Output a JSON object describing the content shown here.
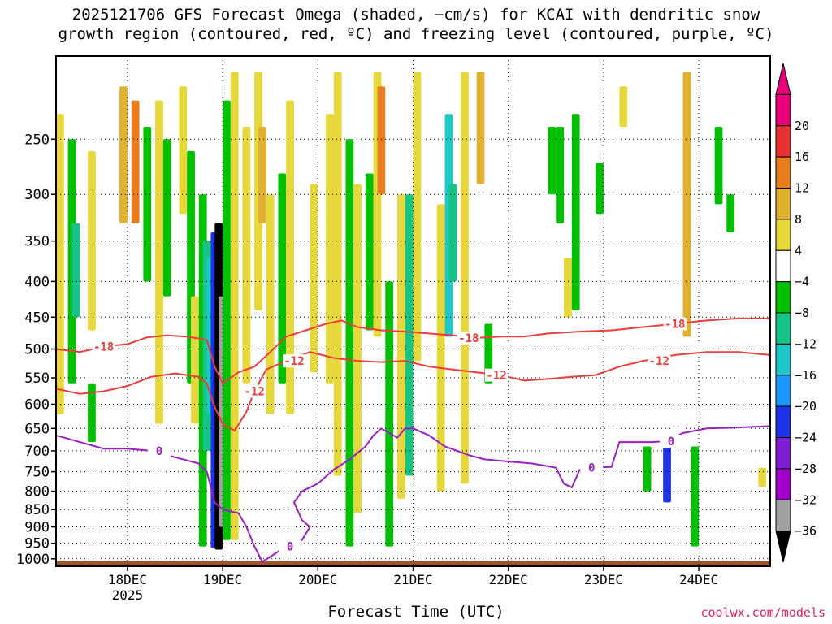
{
  "chart_data": {
    "type": "heatmap",
    "title_lines": [
      "2025121706 GFS Forecast Omega (shaded, −cm/s) for KCAI with dendritic snow",
      "growth region (contoured, red, ºC) and freezing level (contoured, purple, ºC)"
    ],
    "xlabel": "Forecast Time (UTC)",
    "credit": "coolwx.com/models",
    "x_ticks": [
      {
        "t": 0,
        "label": "18DEC",
        "sub": "2025"
      },
      {
        "t": 24,
        "label": "19DEC"
      },
      {
        "t": 48,
        "label": "20DEC"
      },
      {
        "t": 72,
        "label": "21DEC"
      },
      {
        "t": 96,
        "label": "22DEC"
      },
      {
        "t": 120,
        "label": "23DEC"
      },
      {
        "t": 144,
        "label": "24DEC"
      }
    ],
    "xlim": [
      -18,
      162
    ],
    "y_ticks": [
      250,
      300,
      350,
      400,
      450,
      500,
      550,
      600,
      650,
      700,
      750,
      800,
      850,
      900,
      950,
      1000
    ],
    "ylim": [
      1025,
      190
    ],
    "y_scale": "log",
    "colorbar": {
      "labels": [
        "20",
        "16",
        "12",
        "8",
        "4",
        "−4",
        "−8",
        "−12",
        "−16",
        "−20",
        "−24",
        "−28",
        "−32",
        "−36"
      ],
      "colors": [
        "#e8007a",
        "#e83232",
        "#e87d1e",
        "#e0b030",
        "#e6d83a",
        "#ffffff",
        "#00c000",
        "#17c487",
        "#1ec8c8",
        "#1e96ff",
        "#1e32e8",
        "#7d1ed2",
        "#a000c8",
        "#a0a0a0",
        "#000000"
      ]
    },
    "omega_patches": [
      {
        "t0": -18,
        "t1": -16,
        "p0": 230,
        "p1": 620,
        "c": 4
      },
      {
        "t0": -15,
        "t1": -13,
        "p0": 250,
        "p1": 560,
        "c": 6
      },
      {
        "t0": -14,
        "t1": -12,
        "p0": 330,
        "p1": 450,
        "c": 7
      },
      {
        "t0": -10,
        "t1": -8,
        "p0": 260,
        "p1": 470,
        "c": 4
      },
      {
        "t0": -10,
        "t1": -8,
        "p0": 560,
        "p1": 680,
        "c": 6
      },
      {
        "t0": -2,
        "t1": 0,
        "p0": 210,
        "p1": 330,
        "c": 3
      },
      {
        "t0": 1,
        "t1": 3,
        "p0": 220,
        "p1": 330,
        "c": 2
      },
      {
        "t0": 4,
        "t1": 6,
        "p0": 240,
        "p1": 400,
        "c": 6
      },
      {
        "t0": 7,
        "t1": 9,
        "p0": 220,
        "p1": 640,
        "c": 4
      },
      {
        "t0": 9,
        "t1": 11,
        "p0": 250,
        "p1": 420,
        "c": 6
      },
      {
        "t0": 13,
        "t1": 15,
        "p0": 210,
        "p1": 320,
        "c": 4
      },
      {
        "t0": 15,
        "t1": 17,
        "p0": 260,
        "p1": 560,
        "c": 6
      },
      {
        "t0": 16,
        "t1": 18,
        "p0": 420,
        "p1": 640,
        "c": 4
      },
      {
        "t0": 18,
        "t1": 20,
        "p0": 300,
        "p1": 960,
        "c": 6
      },
      {
        "t0": 19,
        "t1": 21,
        "p0": 350,
        "p1": 700,
        "c": 7
      },
      {
        "t0": 20,
        "t1": 22,
        "p0": 370,
        "p1": 620,
        "c": 8
      },
      {
        "t0": 21,
        "t1": 23,
        "p0": 340,
        "p1": 965,
        "c": 10
      },
      {
        "t0": 22,
        "t1": 24,
        "p0": 330,
        "p1": 970,
        "c": 14
      },
      {
        "t0": 23,
        "t1": 25,
        "p0": 420,
        "p1": 900,
        "c": 13
      },
      {
        "t0": 24,
        "t1": 26,
        "p0": 220,
        "p1": 940,
        "c": 6
      },
      {
        "t0": 26,
        "t1": 28,
        "p0": 200,
        "p1": 940,
        "c": 4
      },
      {
        "t0": 29,
        "t1": 31,
        "p0": 240,
        "p1": 560,
        "c": 4
      },
      {
        "t0": 32,
        "t1": 34,
        "p0": 200,
        "p1": 440,
        "c": 4
      },
      {
        "t0": 33,
        "t1": 35,
        "p0": 240,
        "p1": 330,
        "c": 3
      },
      {
        "t0": 35,
        "t1": 37,
        "p0": 300,
        "p1": 620,
        "c": 4
      },
      {
        "t0": 38,
        "t1": 40,
        "p0": 280,
        "p1": 560,
        "c": 6
      },
      {
        "t0": 40,
        "t1": 42,
        "p0": 220,
        "p1": 620,
        "c": 4
      },
      {
        "t0": 46,
        "t1": 48,
        "p0": 290,
        "p1": 540,
        "c": 4
      },
      {
        "t0": 50,
        "t1": 52,
        "p0": 230,
        "p1": 560,
        "c": 4
      },
      {
        "t0": 52,
        "t1": 54,
        "p0": 200,
        "p1": 760,
        "c": 4
      },
      {
        "t0": 55,
        "t1": 57,
        "p0": 250,
        "p1": 960,
        "c": 6
      },
      {
        "t0": 57,
        "t1": 59,
        "p0": 290,
        "p1": 860,
        "c": 4
      },
      {
        "t0": 60,
        "t1": 62,
        "p0": 280,
        "p1": 470,
        "c": 6
      },
      {
        "t0": 62,
        "t1": 64,
        "p0": 200,
        "p1": 480,
        "c": 4
      },
      {
        "t0": 63,
        "t1": 65,
        "p0": 210,
        "p1": 300,
        "c": 2
      },
      {
        "t0": 65,
        "t1": 67,
        "p0": 400,
        "p1": 960,
        "c": 6
      },
      {
        "t0": 68,
        "t1": 70,
        "p0": 300,
        "p1": 820,
        "c": 4
      },
      {
        "t0": 70,
        "t1": 72,
        "p0": 300,
        "p1": 760,
        "c": 7
      },
      {
        "t0": 72,
        "t1": 74,
        "p0": 200,
        "p1": 520,
        "c": 4
      },
      {
        "t0": 78,
        "t1": 80,
        "p0": 310,
        "p1": 800,
        "c": 4
      },
      {
        "t0": 80,
        "t1": 82,
        "p0": 230,
        "p1": 480,
        "c": 8
      },
      {
        "t0": 81,
        "t1": 83,
        "p0": 290,
        "p1": 400,
        "c": 7
      },
      {
        "t0": 84,
        "t1": 86,
        "p0": 200,
        "p1": 780,
        "c": 4
      },
      {
        "t0": 88,
        "t1": 90,
        "p0": 200,
        "p1": 290,
        "c": 3
      },
      {
        "t0": 90,
        "t1": 92,
        "p0": 460,
        "p1": 560,
        "c": 6
      },
      {
        "t0": 106,
        "t1": 108,
        "p0": 240,
        "p1": 300,
        "c": 6
      },
      {
        "t0": 108,
        "t1": 110,
        "p0": 240,
        "p1": 330,
        "c": 6
      },
      {
        "t0": 110,
        "t1": 112,
        "p0": 370,
        "p1": 450,
        "c": 4
      },
      {
        "t0": 112,
        "t1": 114,
        "p0": 230,
        "p1": 440,
        "c": 6
      },
      {
        "t0": 118,
        "t1": 120,
        "p0": 270,
        "p1": 320,
        "c": 6
      },
      {
        "t0": 124,
        "t1": 126,
        "p0": 210,
        "p1": 240,
        "c": 4
      },
      {
        "t0": 130,
        "t1": 132,
        "p0": 690,
        "p1": 800,
        "c": 6
      },
      {
        "t0": 135,
        "t1": 137,
        "p0": 690,
        "p1": 830,
        "c": 10
      },
      {
        "t0": 140,
        "t1": 142,
        "p0": 200,
        "p1": 480,
        "c": 3
      },
      {
        "t0": 142,
        "t1": 144,
        "p0": 690,
        "p1": 960,
        "c": 6
      },
      {
        "t0": 148,
        "t1": 150,
        "p0": 240,
        "p1": 310,
        "c": 6
      },
      {
        "t0": 151,
        "t1": 153,
        "p0": 300,
        "p1": 340,
        "c": 6
      },
      {
        "t0": 159,
        "t1": 161,
        "p0": 740,
        "p1": 790,
        "c": 4
      }
    ],
    "series": [
      {
        "name": "-18",
        "color": "#ee3b3b",
        "labels": [
          {
            "t": -6,
            "text": "-18"
          },
          {
            "t": 86,
            "text": "-18"
          },
          {
            "t": 138,
            "text": "-18"
          }
        ],
        "points": [
          [
            -18,
            500
          ],
          [
            -12,
            505
          ],
          [
            -6,
            496
          ],
          [
            0,
            492
          ],
          [
            5,
            481
          ],
          [
            10,
            478
          ],
          [
            15,
            480
          ],
          [
            20,
            485
          ],
          [
            22,
            530
          ],
          [
            24,
            560
          ],
          [
            28,
            540
          ],
          [
            32,
            530
          ],
          [
            36,
            505
          ],
          [
            40,
            480
          ],
          [
            45,
            470
          ],
          [
            50,
            460
          ],
          [
            54,
            455
          ],
          [
            58,
            465
          ],
          [
            64,
            470
          ],
          [
            70,
            472
          ],
          [
            76,
            475
          ],
          [
            82,
            478
          ],
          [
            88,
            482
          ],
          [
            94,
            480
          ],
          [
            100,
            480
          ],
          [
            106,
            475
          ],
          [
            114,
            472
          ],
          [
            122,
            470
          ],
          [
            130,
            465
          ],
          [
            138,
            460
          ],
          [
            146,
            455
          ],
          [
            154,
            452
          ],
          [
            162,
            452
          ]
        ]
      },
      {
        "name": "-12",
        "color": "#ee3b3b",
        "labels": [
          {
            "t": 32,
            "text": "-12"
          },
          {
            "t": 42,
            "text": "-12"
          },
          {
            "t": 93,
            "text": "-12"
          },
          {
            "t": 134,
            "text": "-12"
          }
        ],
        "points": [
          [
            -18,
            570
          ],
          [
            -12,
            580
          ],
          [
            -6,
            575
          ],
          [
            0,
            565
          ],
          [
            6,
            548
          ],
          [
            12,
            542
          ],
          [
            18,
            548
          ],
          [
            20,
            560
          ],
          [
            22,
            605
          ],
          [
            24,
            640
          ],
          [
            27,
            655
          ],
          [
            30,
            615
          ],
          [
            32,
            575
          ],
          [
            35,
            535
          ],
          [
            40,
            520
          ],
          [
            46,
            505
          ],
          [
            52,
            515
          ],
          [
            58,
            520
          ],
          [
            64,
            522
          ],
          [
            70,
            520
          ],
          [
            76,
            530
          ],
          [
            82,
            535
          ],
          [
            88,
            540
          ],
          [
            94,
            545
          ],
          [
            100,
            555
          ],
          [
            106,
            552
          ],
          [
            112,
            548
          ],
          [
            118,
            545
          ],
          [
            124,
            530
          ],
          [
            130,
            520
          ],
          [
            138,
            510
          ],
          [
            146,
            505
          ],
          [
            154,
            505
          ],
          [
            162,
            510
          ]
        ]
      },
      {
        "name": "0",
        "color": "#9a1fc4",
        "labels": [
          {
            "t": 8,
            "text": "0"
          },
          {
            "t": 41,
            "text": "0"
          },
          {
            "t": 117,
            "text": "0"
          },
          {
            "t": 137,
            "text": "0"
          }
        ],
        "points": [
          [
            -18,
            665
          ],
          [
            -12,
            680
          ],
          [
            -6,
            695
          ],
          [
            0,
            695
          ],
          [
            6,
            700
          ],
          [
            12,
            715
          ],
          [
            18,
            730
          ],
          [
            20,
            750
          ],
          [
            22,
            830
          ],
          [
            24,
            850
          ],
          [
            28,
            860
          ],
          [
            30,
            900
          ],
          [
            32,
            960
          ],
          [
            34,
            1010
          ],
          [
            40,
            960
          ],
          [
            44,
            940
          ],
          [
            46,
            900
          ],
          [
            44,
            880
          ],
          [
            42,
            830
          ],
          [
            44,
            800
          ],
          [
            48,
            780
          ],
          [
            52,
            745
          ],
          [
            56,
            720
          ],
          [
            60,
            690
          ],
          [
            62,
            665
          ],
          [
            64,
            650
          ],
          [
            66,
            660
          ],
          [
            68,
            670
          ],
          [
            70,
            650
          ],
          [
            72,
            650
          ],
          [
            76,
            665
          ],
          [
            80,
            690
          ],
          [
            86,
            710
          ],
          [
            90,
            720
          ],
          [
            96,
            725
          ],
          [
            102,
            730
          ],
          [
            108,
            740
          ],
          [
            110,
            780
          ],
          [
            112,
            790
          ],
          [
            114,
            745
          ],
          [
            118,
            740
          ],
          [
            122,
            738
          ],
          [
            124,
            680
          ],
          [
            128,
            680
          ],
          [
            132,
            680
          ],
          [
            136,
            678
          ],
          [
            140,
            660
          ],
          [
            146,
            650
          ],
          [
            154,
            648
          ],
          [
            162,
            645
          ]
        ]
      }
    ],
    "terrain_color": "#a0522d",
    "ground_pressure": 1008
  }
}
